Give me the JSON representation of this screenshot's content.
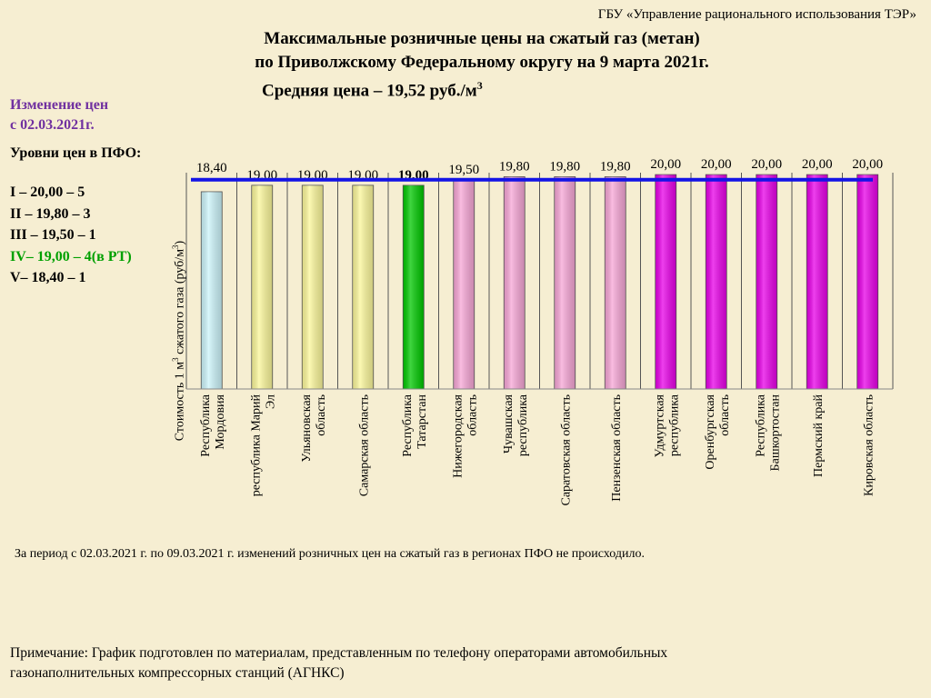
{
  "header": {
    "org": "ГБУ «Управление рационального использования ТЭР»",
    "title_line1": "Максимальные розничные цены на сжатый газ (метан)",
    "title_line2": "по Приволжскому Федеральному округу на 9 марта 2021г.",
    "avg_text": "Средняя цена – 19,52 руб./м",
    "avg_sup": "3"
  },
  "sidebar": {
    "change_line1": "Изменение цен",
    "change_line2": "с  02.03.2021г.",
    "levels_title": "Уровни цен в ПФО:",
    "levels": [
      "I – 20,00 – 5",
      "II – 19,80 – 3",
      "III – 19,50 – 1",
      "IV– 19,00 – 4(в РТ)",
      "V– 18,40 – 1"
    ]
  },
  "chart_data": {
    "type": "bar",
    "ylabel_a": "Стоимость 1 м",
    "ylabel_sup": "3",
    "ylabel_b": " сжатого газа  (руб/м",
    "ylabel_sup2": "3",
    "ylabel_c": ")",
    "average": 19.52,
    "ylim": [
      0,
      20.6
    ],
    "categories": [
      [
        "Республика",
        "Мордовия"
      ],
      [
        "республика Марий",
        "Эл"
      ],
      [
        "Ульяновская",
        "область"
      ],
      [
        "Самарская область"
      ],
      [
        "Республика",
        "Татарстан"
      ],
      [
        "Нижегородская",
        "область"
      ],
      [
        "Чувашская",
        "республика"
      ],
      [
        "Саратовская область"
      ],
      [
        "Пензенская область"
      ],
      [
        "Удмуртская",
        "республика"
      ],
      [
        "Оренбургская",
        "область"
      ],
      [
        "Республика",
        "Башкортостан"
      ],
      [
        "Пермский край"
      ],
      [
        "Кировская область"
      ]
    ],
    "values": [
      18.4,
      19.0,
      19.0,
      19.0,
      19.0,
      19.5,
      19.8,
      19.8,
      19.8,
      20.0,
      20.0,
      20.0,
      20.0,
      20.0
    ],
    "labels": [
      "18,40",
      "19,00",
      "19,00",
      "19,00",
      "19,00",
      "19,50",
      "19,80",
      "19,80",
      "19,80",
      "20,00",
      "20,00",
      "20,00",
      "20,00",
      "20,00"
    ],
    "colors": [
      "#ccf4fa",
      "#fbf79a",
      "#fbf79a",
      "#fbf79a",
      "#00c800",
      "#f7a6d6",
      "#f7a6d6",
      "#f7a6d6",
      "#f7a6d6",
      "#e800e8",
      "#e800e8",
      "#e800e8",
      "#e800e8",
      "#e800e8"
    ],
    "avg_color": "#1414e6"
  },
  "footer": {
    "period": "За период с 02.03.2021 г. по 09.03.2021 г.  изменений розничных  цен на  сжатый газ в  регионах ПФО не происходило.",
    "note_line1": "Примечание: График подготовлен по материалам, представленным по телефону операторами автомобильных",
    "note_line2": "газонаполнительных компрессорных станций (АГНКС)"
  }
}
